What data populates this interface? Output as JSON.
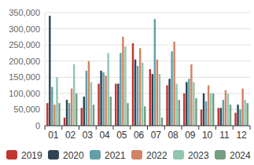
{
  "chart_data": {
    "type": "bar",
    "categories": [
      "01",
      "02",
      "03",
      "04",
      "05",
      "06",
      "07",
      "08",
      "09",
      "10",
      "11",
      "12"
    ],
    "series": [
      {
        "name": "2019",
        "color": "#c23531",
        "values": [
          70000,
          25000,
          55000,
          130000,
          130000,
          255000,
          175000,
          125000,
          100000,
          50000,
          55000,
          40000
        ]
      },
      {
        "name": "2020",
        "color": "#2f4554",
        "values": [
          340000,
          80000,
          90000,
          170000,
          130000,
          205000,
          160000,
          145000,
          135000,
          100000,
          55000,
          65000
        ]
      },
      {
        "name": "2021",
        "color": "#61a0a8",
        "values": [
          120000,
          70000,
          170000,
          165000,
          225000,
          185000,
          330000,
          230000,
          145000,
          75000,
          80000,
          50000
        ]
      },
      {
        "name": "2022",
        "color": "#d48265",
        "values": [
          65000,
          115000,
          200000,
          155000,
          275000,
          240000,
          205000,
          260000,
          190000,
          125000,
          110000,
          115000
        ]
      },
      {
        "name": "2023",
        "color": "#91c7ae",
        "values": [
          150000,
          190000,
          135000,
          225000,
          245000,
          195000,
          160000,
          130000,
          135000,
          100000,
          100000,
          80000
        ]
      },
      {
        "name": "2024",
        "color": "#749f83",
        "values": [
          70000,
          100000,
          65000,
          90000,
          70000,
          60000,
          25000,
          80000,
          85000,
          100000,
          65000,
          70000
        ]
      }
    ],
    "ylim": [
      0,
      350000
    ],
    "yticks": [
      0,
      {
        "value": 50000,
        "label": "50,000"
      },
      {
        "value": 100000,
        "label": "100,000"
      },
      {
        "value": 150000,
        "label": "150,000"
      },
      {
        "value": 200000,
        "label": "200,000"
      },
      {
        "value": 250000,
        "label": "250,000"
      },
      {
        "value": 300000,
        "label": "300,000"
      },
      {
        "value": 350000,
        "label": "350,000"
      }
    ],
    "grid": true,
    "legend": "bottom"
  }
}
